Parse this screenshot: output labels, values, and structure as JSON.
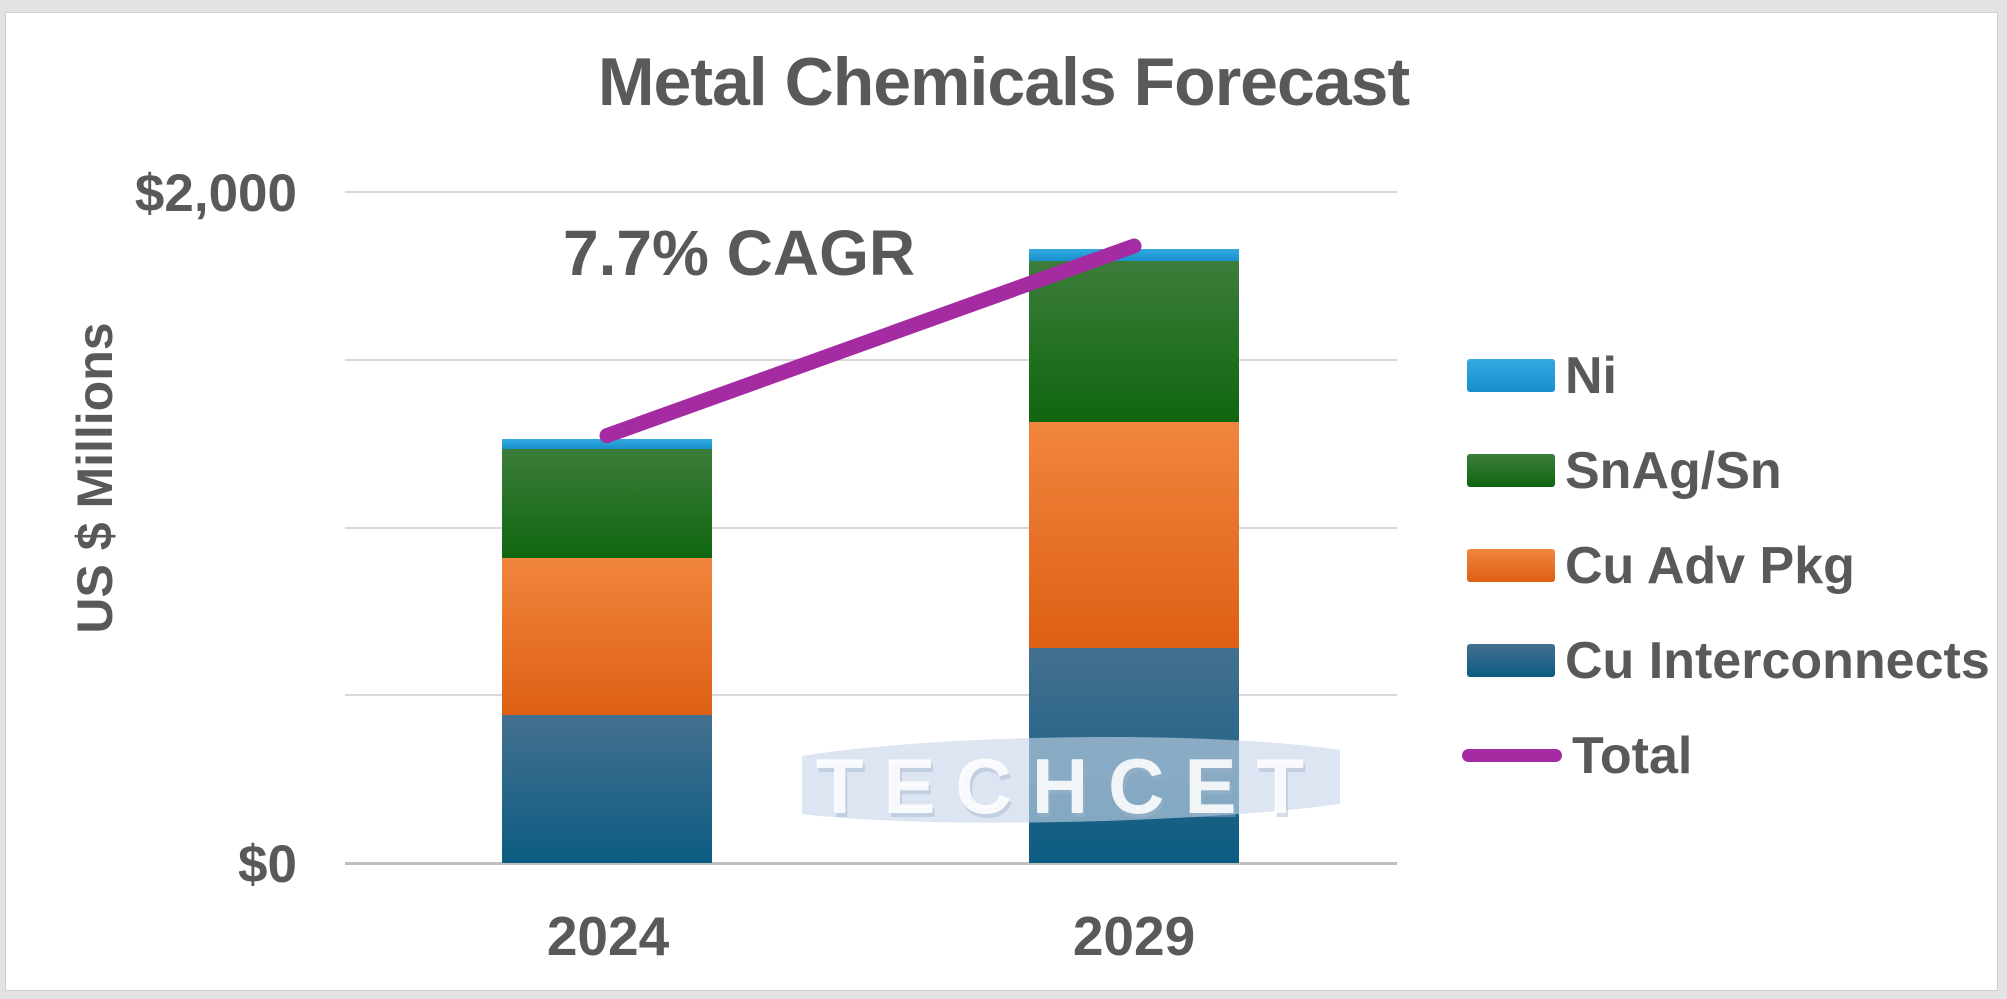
{
  "watermark": {
    "text": "TECHCET"
  },
  "colors": {
    "text": "#595959",
    "gridline": "#D9D9D9",
    "axis_line": "#BFBFBF",
    "slide_border": "#CFCFCF",
    "outer_background": "#E3E3E3"
  },
  "chart_data": {
    "type": "bar",
    "subtype": "stacked-column-with-total-line",
    "title": "Metal Chemicals Forecast",
    "annotation": "7.7% CAGR",
    "xlabel": "",
    "ylabel": "US $ Millions",
    "units": "US $ Millions",
    "categories": [
      "2024",
      "2029"
    ],
    "series": [
      {
        "name": "Cu Interconnects",
        "values": [
          440,
          640
        ],
        "color_top": "#44708F",
        "color_bottom": "#0C5C82"
      },
      {
        "name": "Cu Adv Pkg",
        "values": [
          470,
          675
        ],
        "color_top": "#F1853E",
        "color_bottom": "#DD6014"
      },
      {
        "name": "SnAg/Sn",
        "values": [
          325,
          480
        ],
        "color_top": "#3C7D3B",
        "color_bottom": "#0F660F"
      },
      {
        "name": "Ni",
        "values": [
          30,
          35
        ],
        "color_top": "#33A9E0",
        "color_bottom": "#1790CC"
      }
    ],
    "total_line": {
      "label": "Total",
      "color": "#A52BA3",
      "values": [
        1265,
        1830
      ]
    },
    "y_axis": {
      "min": 0,
      "max": 2000,
      "gridline_step": 500,
      "tick_labels": [
        {
          "value": 2000,
          "label": "$2,000"
        },
        {
          "value": 0,
          "label": "$0"
        }
      ]
    },
    "legend_position": "right",
    "legend_order": [
      "Ni",
      "SnAg/Sn",
      "Cu Adv Pkg",
      "Cu Interconnects",
      "Total"
    ],
    "grid": true
  }
}
